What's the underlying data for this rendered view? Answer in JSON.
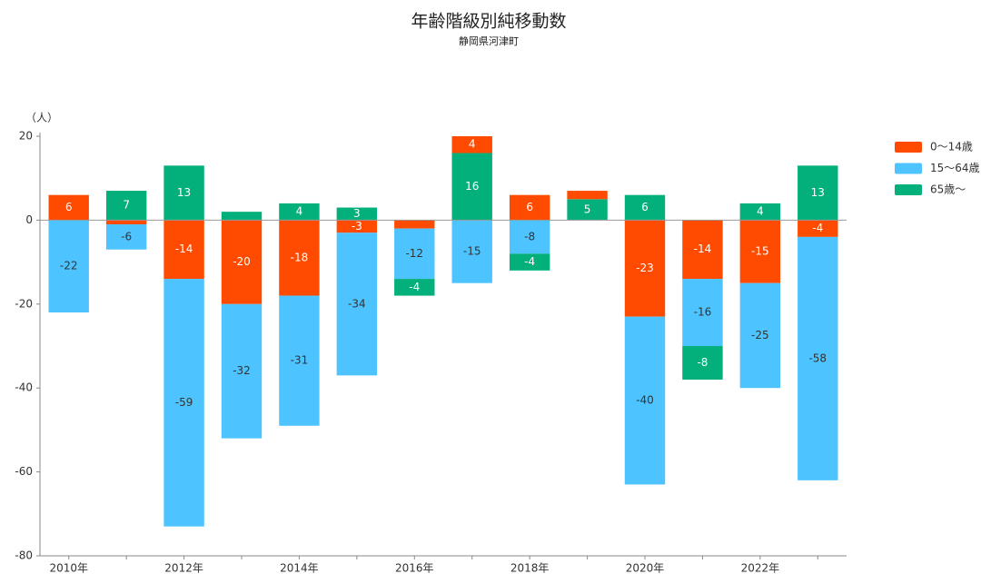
{
  "chart_data": {
    "type": "stacked_bar",
    "title": "年齢階級別純移動数",
    "subtitle": "静岡県河津町",
    "y_label": "（人）",
    "categories": [
      "2010年",
      null,
      "2012年",
      null,
      "2014年",
      null,
      "2016年",
      null,
      "2018年",
      null,
      "2020年",
      null,
      "2022年",
      null
    ],
    "series": [
      {
        "name": "0～14歳",
        "color": "#ff4b00",
        "values": [
          6,
          -1,
          -14,
          -20,
          -18,
          -3,
          -2,
          4,
          6,
          2,
          -23,
          -14,
          -15,
          -4
        ]
      },
      {
        "name": "15～64歳",
        "color": "#4dc4ff",
        "values": [
          -22,
          -6,
          -59,
          -32,
          -31,
          -34,
          -12,
          -15,
          -8,
          0,
          -40,
          -16,
          -25,
          -58
        ]
      },
      {
        "name": "65歳～",
        "color": "#03af7a",
        "values": [
          0,
          7,
          13,
          2,
          4,
          3,
          -4,
          16,
          -4,
          5,
          6,
          -8,
          4,
          13
        ]
      }
    ],
    "ylim": [
      -80,
      20
    ],
    "yticks": [
      -80,
      -60,
      -40,
      -20,
      0,
      20
    ],
    "grid": false,
    "legend": "right"
  }
}
